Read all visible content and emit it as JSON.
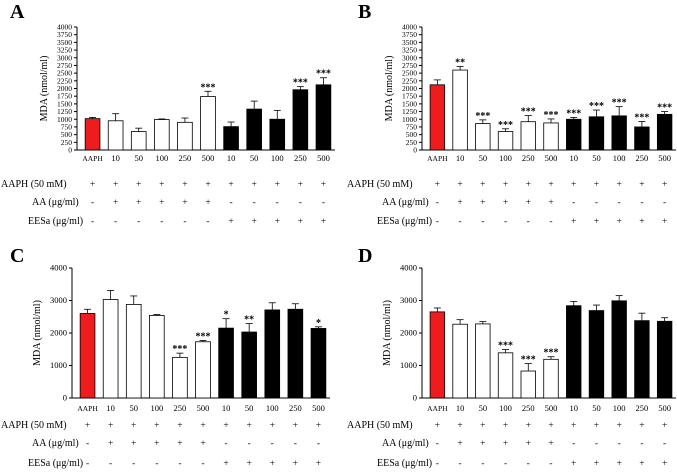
{
  "row_labels": [
    "AAPH (50 mM)",
    "AA (μg/ml)",
    "EESa (μg/ml)"
  ],
  "row_signs": [
    [
      "+",
      "+",
      "+",
      "+",
      "+",
      "+",
      "+",
      "+",
      "+",
      "+",
      "+"
    ],
    [
      "-",
      "+",
      "+",
      "+",
      "+",
      "+",
      "-",
      "-",
      "-",
      "-",
      "-"
    ],
    [
      "-",
      "-",
      "-",
      "-",
      "-",
      "-",
      "+",
      "+",
      "+",
      "+",
      "+"
    ]
  ],
  "colors": {
    "red": "#ee1c1c",
    "white": "#ffffff",
    "black": "#000000",
    "axis": "#000000"
  },
  "bar_styles": [
    "red",
    "white",
    "white",
    "white",
    "white",
    "white",
    "black",
    "black",
    "black",
    "black",
    "black"
  ],
  "chart_data": [
    {
      "panel": "A",
      "type": "bar",
      "ylabel": "MDA (nmol/ml)",
      "ylim": [
        0,
        4000
      ],
      "yticks": [
        0,
        250,
        500,
        750,
        1000,
        1250,
        1500,
        1750,
        2000,
        2250,
        2500,
        2750,
        3000,
        3250,
        3500,
        3750,
        4000
      ],
      "categories": [
        "AAPH",
        "10",
        "50",
        "100",
        "250",
        "500",
        "10",
        "50",
        "100",
        "250",
        "500"
      ],
      "values": [
        1020,
        950,
        600,
        990,
        900,
        1740,
        760,
        1330,
        1000,
        1960,
        2120
      ],
      "errors": [
        40,
        230,
        110,
        20,
        140,
        170,
        150,
        260,
        290,
        100,
        230
      ],
      "significance": [
        "",
        "",
        "",
        "",
        "",
        "***",
        "",
        "",
        "",
        "***",
        "***"
      ]
    },
    {
      "panel": "B",
      "type": "bar",
      "ylabel": "MDA (nmol/ml)",
      "ylim": [
        0,
        4000
      ],
      "yticks": [
        0,
        250,
        500,
        750,
        1000,
        1250,
        1500,
        1750,
        2000,
        2250,
        2500,
        2750,
        3000,
        3250,
        3500,
        3750,
        4000
      ],
      "categories": [
        "AAPH",
        "10",
        "50",
        "100",
        "250",
        "500",
        "10",
        "50",
        "100",
        "250",
        "500"
      ],
      "values": [
        2120,
        2600,
        860,
        600,
        920,
        880,
        1000,
        1080,
        1110,
        750,
        1160
      ],
      "errors": [
        160,
        120,
        120,
        90,
        200,
        130,
        60,
        220,
        300,
        180,
        90
      ],
      "significance": [
        "",
        "**",
        "***",
        "***",
        "***",
        "***",
        "***",
        "***",
        "***",
        "***",
        "***"
      ]
    },
    {
      "panel": "C",
      "type": "bar",
      "ylabel": "MDA (nmol/ml)",
      "ylim": [
        0,
        4000
      ],
      "yticks": [
        0,
        1000,
        2000,
        3000,
        4000
      ],
      "categories": [
        "AAPH",
        "10",
        "50",
        "100",
        "250",
        "500",
        "10",
        "50",
        "100",
        "250",
        "500"
      ],
      "values": [
        2600,
        3030,
        2880,
        2540,
        1250,
        1730,
        2150,
        2030,
        2710,
        2730,
        2140
      ],
      "errors": [
        130,
        280,
        260,
        30,
        130,
        40,
        290,
        260,
        220,
        170,
        50
      ],
      "significance": [
        "",
        "",
        "",
        "",
        "***",
        "***",
        "*",
        "**",
        "",
        "",
        "*"
      ]
    },
    {
      "panel": "D",
      "type": "bar",
      "ylabel": "MDA (nmol/ml)",
      "ylim": [
        0,
        4000
      ],
      "yticks": [
        0,
        1000,
        2000,
        3000,
        4000
      ],
      "categories": [
        "AAPH",
        "10",
        "50",
        "100",
        "250",
        "500",
        "10",
        "50",
        "100",
        "250",
        "500"
      ],
      "values": [
        2650,
        2270,
        2280,
        1390,
        830,
        1190,
        2840,
        2690,
        2990,
        2380,
        2360
      ],
      "errors": [
        120,
        140,
        70,
        100,
        230,
        80,
        130,
        170,
        160,
        230,
        110
      ],
      "significance": [
        "",
        "",
        "",
        "***",
        "***",
        "***",
        "",
        "",
        "",
        "",
        ""
      ]
    }
  ]
}
